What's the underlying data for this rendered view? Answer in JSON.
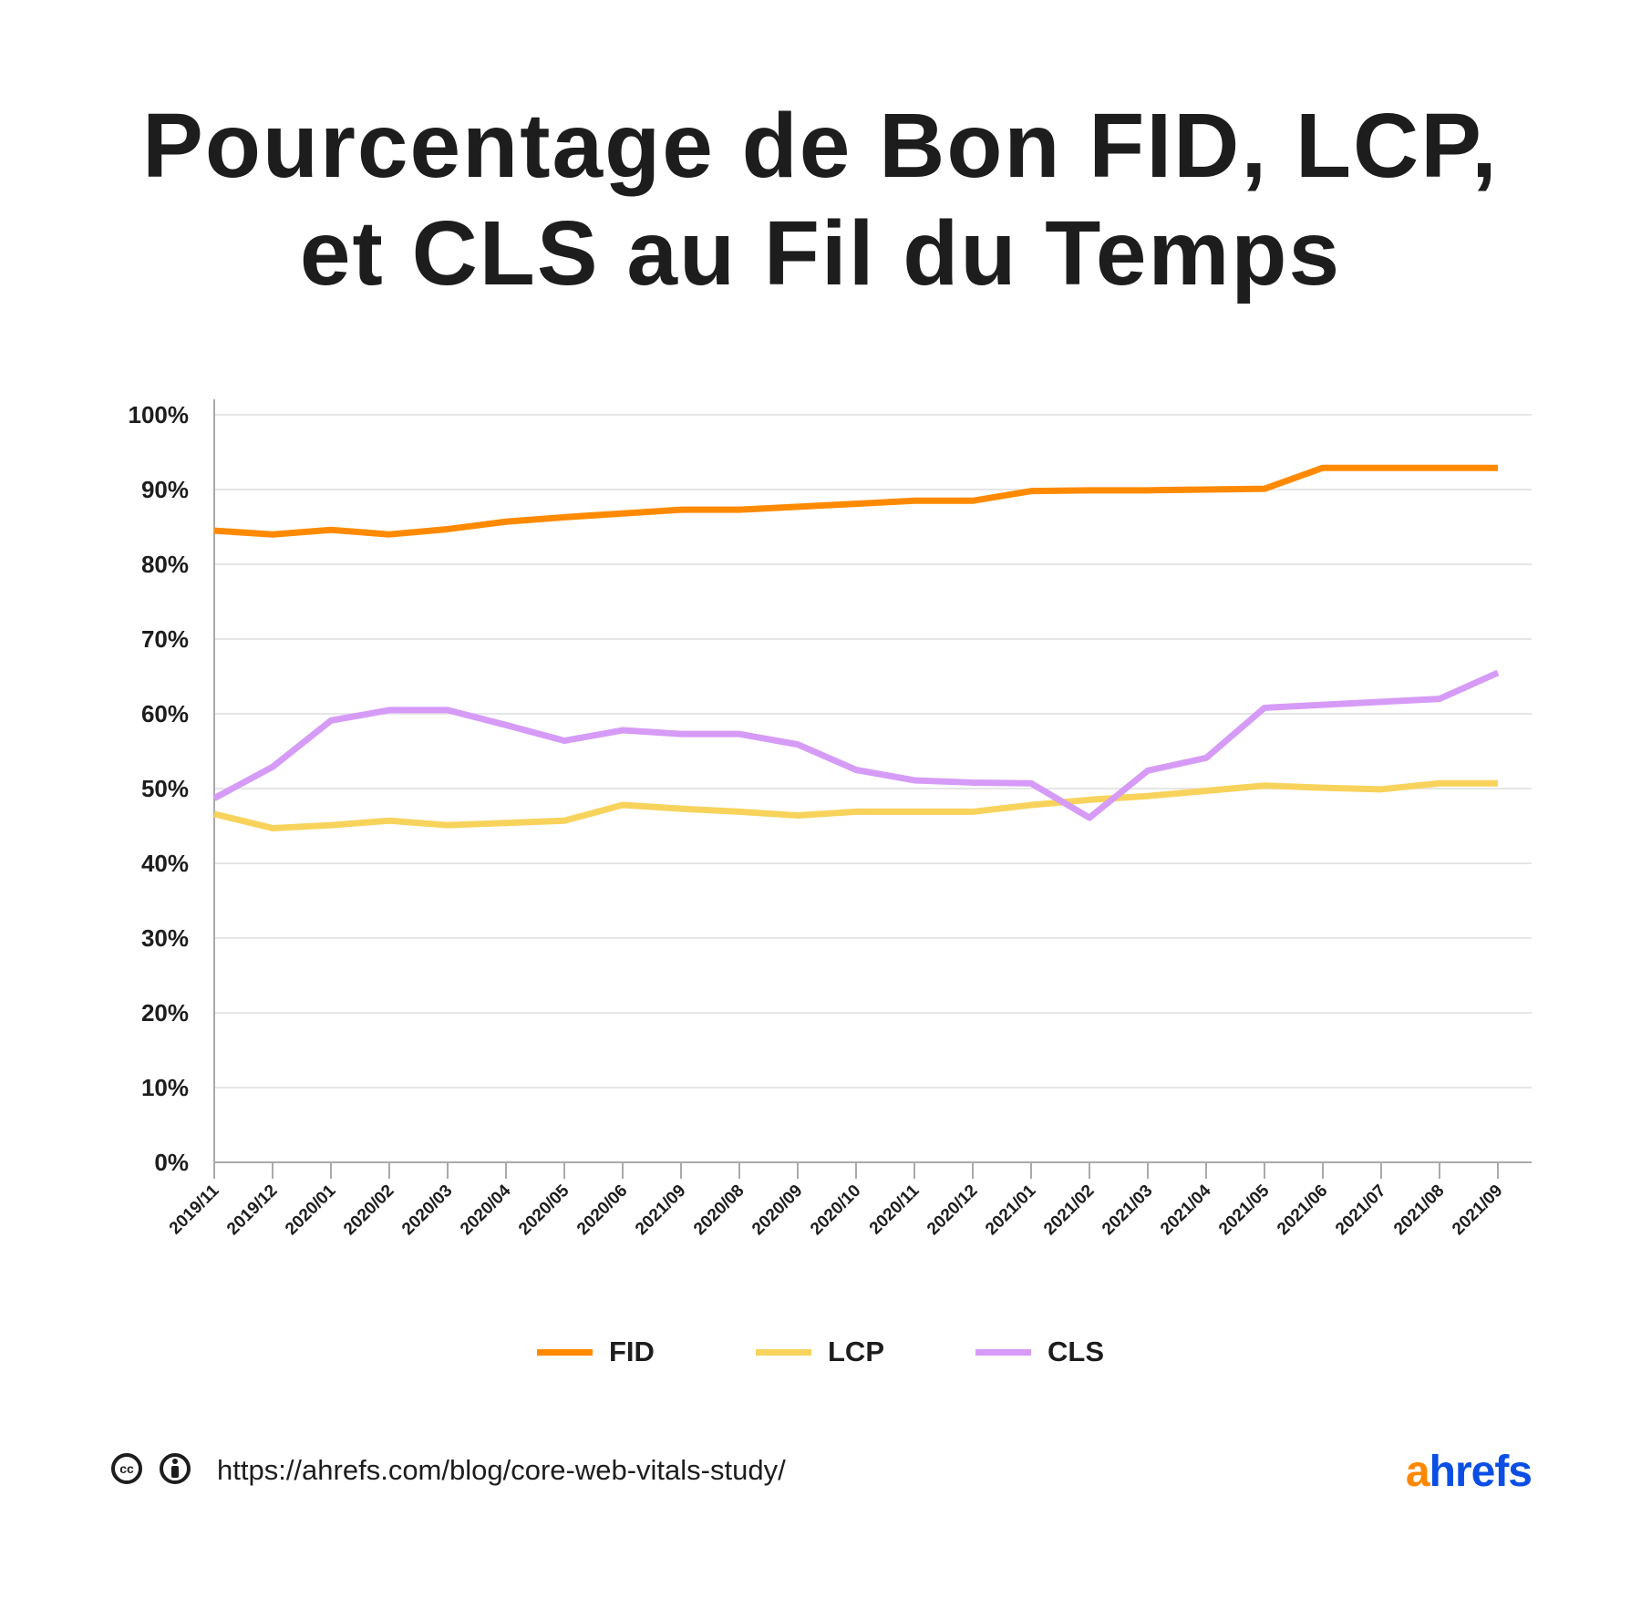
{
  "title_lines": [
    "Pourcentage de Bon FID, LCP,",
    "et CLS au Fil du Temps"
  ],
  "chart_data": {
    "type": "line",
    "title": "Pourcentage de Bon FID, LCP, et CLS au Fil du Temps",
    "xlabel": "",
    "ylabel": "",
    "categories": [
      "2019/11",
      "2019/12",
      "2020/01",
      "2020/02",
      "2020/03",
      "2020/04",
      "2020/05",
      "2020/06",
      "2021/09",
      "2020/08",
      "2020/09",
      "2020/10",
      "2020/11",
      "2020/12",
      "2021/01",
      "2021/02",
      "2021/03",
      "2021/04",
      "2021/05",
      "2021/06",
      "2021/07",
      "2021/08",
      "2021/09"
    ],
    "ylim": [
      0,
      100
    ],
    "yticks": [
      "0%",
      "10%",
      "20%",
      "30%",
      "40%",
      "50%",
      "60%",
      "70%",
      "80%",
      "90%",
      "100%"
    ],
    "grid": "horizontal",
    "legend_position": "bottom",
    "series": [
      {
        "name": "FID",
        "color": "#ff8a00",
        "values": [
          84.5,
          84.0,
          84.6,
          84.0,
          84.7,
          85.7,
          86.3,
          86.8,
          87.3,
          87.3,
          87.7,
          88.1,
          88.5,
          88.5,
          89.8,
          89.9,
          89.9,
          90.0,
          90.1,
          92.9,
          92.9,
          92.9,
          92.9
        ]
      },
      {
        "name": "LCP",
        "color": "#f8d35c",
        "values": [
          46.6,
          44.7,
          45.1,
          45.7,
          45.1,
          45.4,
          45.7,
          47.8,
          47.3,
          46.9,
          46.4,
          46.9,
          46.9,
          46.9,
          47.8,
          48.5,
          49.0,
          49.7,
          50.4,
          50.1,
          49.9,
          50.7,
          50.7
        ]
      },
      {
        "name": "CLS",
        "color": "#d69bf7",
        "values": [
          48.7,
          52.9,
          59.1,
          60.5,
          60.5,
          58.5,
          56.4,
          57.8,
          57.3,
          57.3,
          55.9,
          52.5,
          51.1,
          50.8,
          50.7,
          46.1,
          52.4,
          54.1,
          60.8,
          61.2,
          61.6,
          62.0,
          65.5
        ]
      }
    ]
  },
  "footer": {
    "license_icons": [
      "cc-icon",
      "attribution-icon"
    ],
    "cc_text": "cc",
    "url": "https://ahrefs.com/blog/core-web-vitals-study/",
    "logo_a": "a",
    "logo_rest": "hrefs",
    "logo_colors": {
      "a": "#ff8800",
      "rest": "#0a4ee4"
    }
  }
}
